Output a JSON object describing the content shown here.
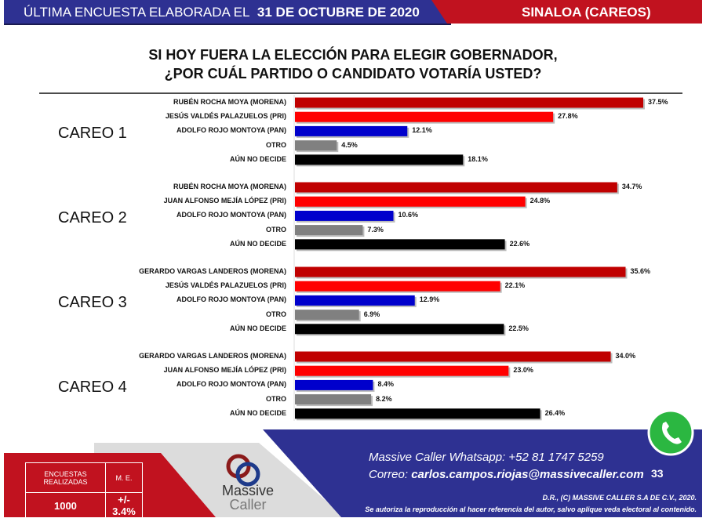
{
  "header": {
    "prefix": "ÚLTIMA ENCUESTA ELABORADA EL",
    "date": "31 DE OCTUBRE DE 2020",
    "region": "SINALOA (CAREOS)"
  },
  "title_line1": "SI HOY FUERA LA ELECCIÓN PARA ELEGIR GOBERNADOR,",
  "title_line2": "¿POR CUÁL PARTIDO O CANDIDATO VOTARÍA USTED?",
  "colors": {
    "morena": "#c00000",
    "pri": "#ff0000",
    "pan": "#0000cc",
    "otro": "#808080",
    "indecisos": "#000000",
    "blue_band": "#2e3192",
    "red_band": "#c1121f"
  },
  "chart_data": {
    "type": "bar",
    "orientation": "horizontal",
    "unit": "%",
    "groups": [
      {
        "name": "CAREO 1",
        "categories": [
          "RUBÉN ROCHA MOYA (MORENA)",
          "JESÚS VALDÉS PALAZUELOS (PRI)",
          "ADOLFO ROJO MONTOYA (PAN)",
          "OTRO",
          "AÚN NO DECIDE"
        ],
        "values": [
          37.5,
          27.8,
          12.1,
          4.5,
          18.1
        ],
        "labels": [
          "37.5%",
          "27.8%",
          "12.1%",
          "4.5%",
          "18.1%"
        ],
        "parties": [
          "morena",
          "pri",
          "pan",
          "otro",
          "indecisos"
        ]
      },
      {
        "name": "CAREO 2",
        "categories": [
          "RUBÉN ROCHA MOYA (MORENA)",
          "JUAN ALFONSO MEJÍA LÓPEZ (PRI)",
          "ADOLFO ROJO MONTOYA (PAN)",
          "OTRO",
          "AÚN NO DECIDE"
        ],
        "values": [
          34.7,
          24.8,
          10.6,
          7.3,
          22.6
        ],
        "labels": [
          "34.7%",
          "24.8%",
          "10.6%",
          "7.3%",
          "22.6%"
        ],
        "parties": [
          "morena",
          "pri",
          "pan",
          "otro",
          "indecisos"
        ]
      },
      {
        "name": "CAREO 3",
        "categories": [
          "GERARDO VARGAS LANDEROS (MORENA)",
          "JESÚS VALDÉS PALAZUELOS (PRI)",
          "ADOLFO ROJO MONTOYA (PAN)",
          "OTRO",
          "AÚN NO DECIDE"
        ],
        "values": [
          35.6,
          22.1,
          12.9,
          6.9,
          22.5
        ],
        "labels": [
          "35.6%",
          "22.1%",
          "12.9%",
          "6.9%",
          "22.5%"
        ],
        "parties": [
          "morena",
          "pri",
          "pan",
          "otro",
          "indecisos"
        ]
      },
      {
        "name": "CAREO 4",
        "categories": [
          "GERARDO VARGAS LANDEROS (MORENA)",
          "JUAN ALFONSO MEJÍA LÓPEZ (PRI)",
          "ADOLFO ROJO MONTOYA (PAN)",
          "OTRO",
          "AÚN NO DECIDE"
        ],
        "values": [
          34.0,
          23.0,
          8.4,
          8.2,
          26.4
        ],
        "labels": [
          "34.0%",
          "23.0%",
          "8.4%",
          "8.2%",
          "26.4%"
        ],
        "parties": [
          "morena",
          "pri",
          "pan",
          "otro",
          "indecisos"
        ]
      }
    ]
  },
  "footer": {
    "stats_header_1": "ENCUESTAS REALIZADAS",
    "stats_header_2": "M. E.",
    "stats_value_1": "1000",
    "stats_value_2": "+/- 3.4%",
    "logo_text_1": "Massive",
    "logo_text_2": "Caller",
    "whatsapp": "Massive Caller Whatsapp:  +52 81 1747 5259",
    "email_prefix": "Correo: ",
    "email": "carlos.campos.riojas@massivecaller.com",
    "page_number": "33",
    "copyright": "D.R., (C) MASSIVE CALLER S.A DE C.V., 2020.",
    "notice": "Se autoriza la reproducción al hacer referencia del autor, salvo aplique veda electoral al contenido."
  }
}
